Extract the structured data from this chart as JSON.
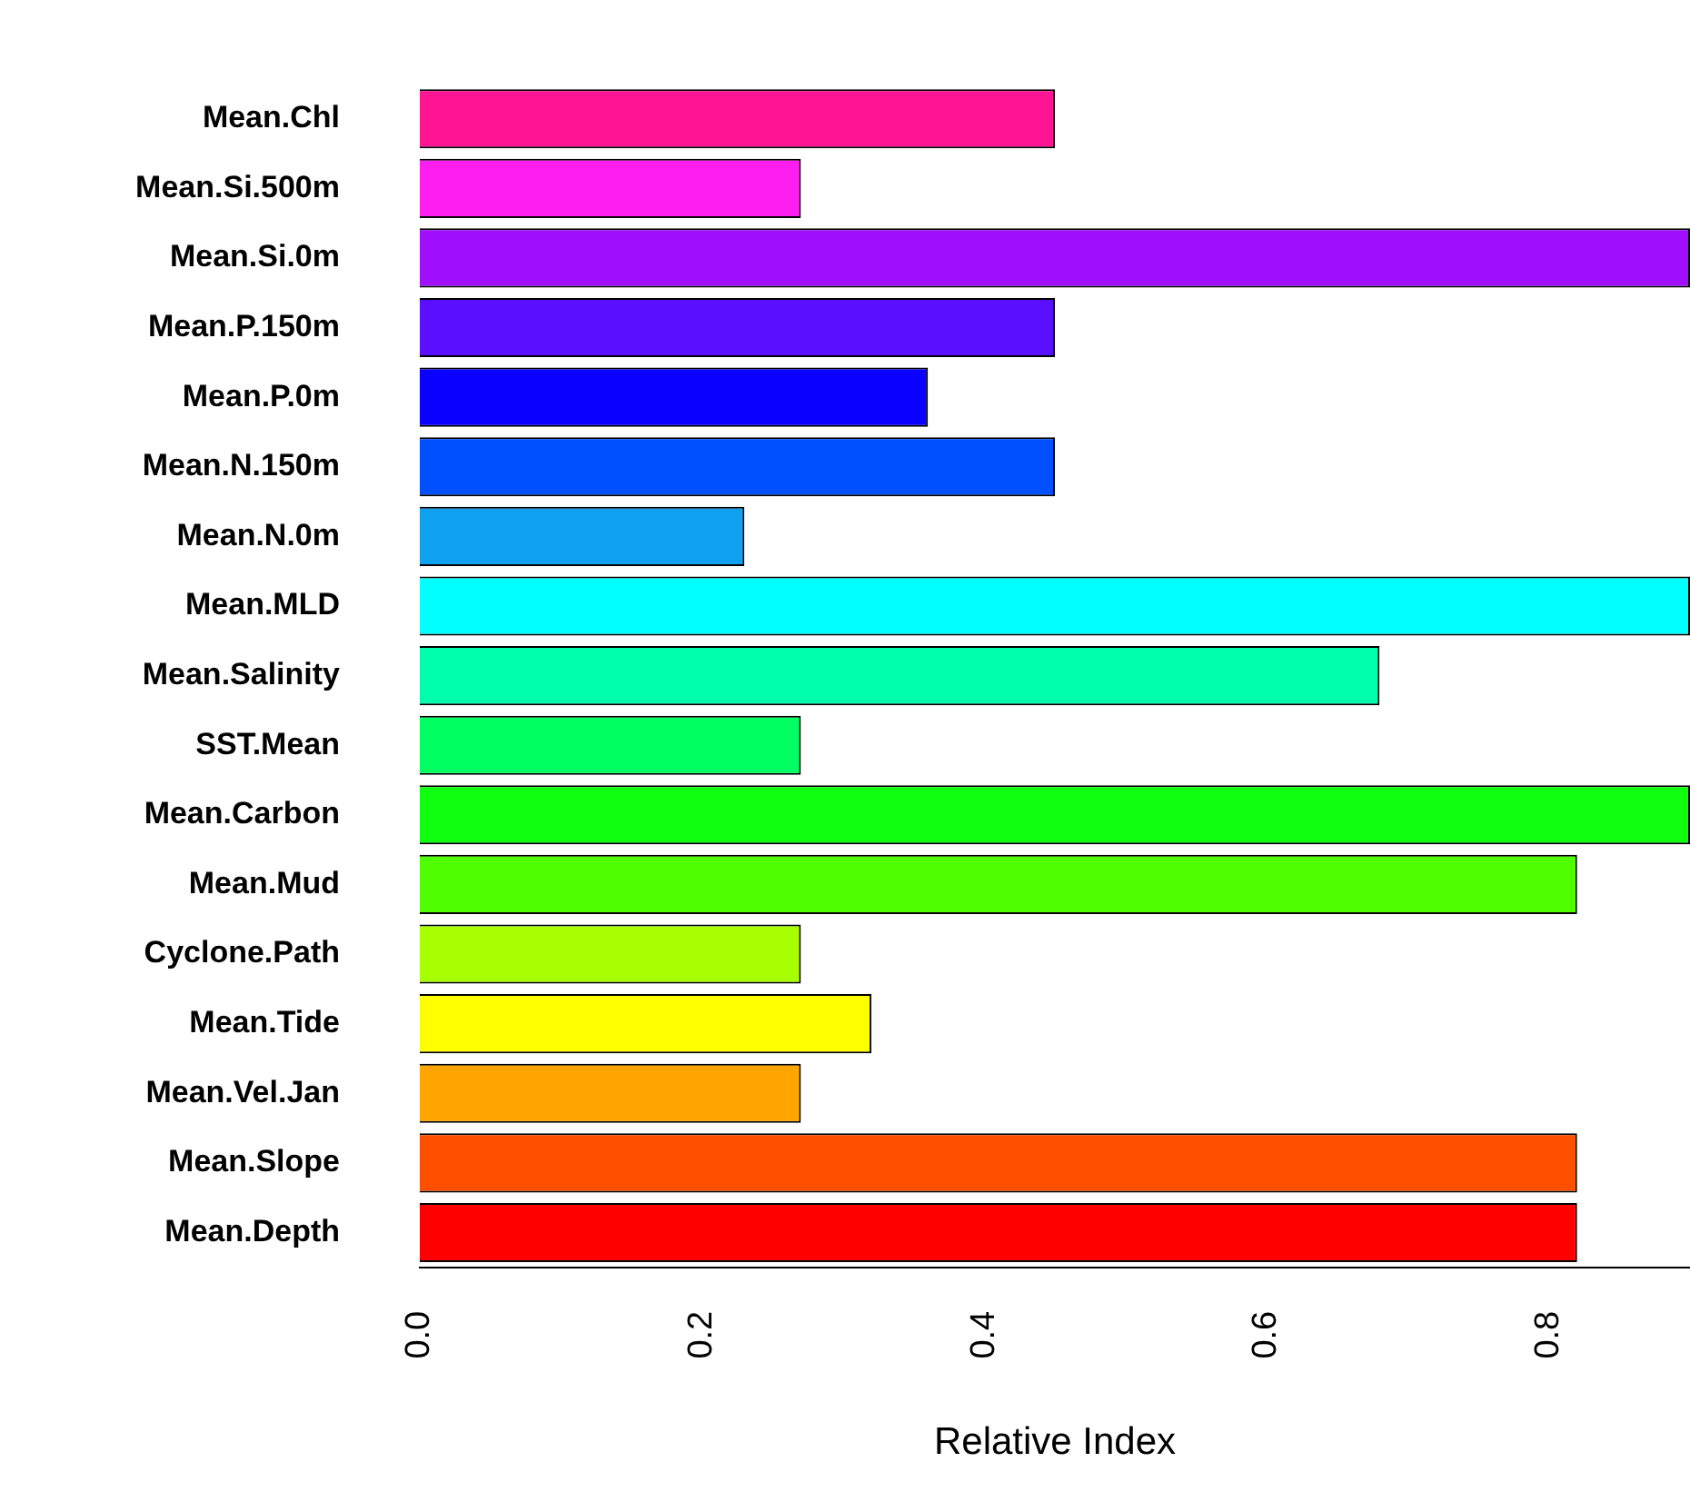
{
  "chart_data": {
    "type": "bar",
    "orientation": "horizontal",
    "xlabel": "Relative Index",
    "categories": [
      "Mean.Chl",
      "Mean.Si.500m",
      "Mean.Si.0m",
      "Mean.P.150m",
      "Mean.P.0m",
      "Mean.N.150m",
      "Mean.N.0m",
      "Mean.MLD",
      "Mean.Salinity",
      "SST.Mean",
      "Mean.Carbon",
      "Mean.Mud",
      "Cyclone.Path",
      "Mean.Tide",
      "Mean.Vel.Jan",
      "Mean.Slope",
      "Mean.Depth"
    ],
    "values": [
      0.45,
      0.27,
      0.9,
      0.45,
      0.36,
      0.45,
      0.23,
      0.9,
      0.68,
      0.27,
      0.9,
      0.82,
      0.27,
      0.32,
      0.27,
      0.82,
      0.82
    ],
    "colors": [
      "#ff1493",
      "#ff1ef0",
      "#a010ff",
      "#5a10ff",
      "#0a00ff",
      "#0050ff",
      "#10a0f0",
      "#00ffff",
      "#00ffaa",
      "#00ff60",
      "#10ff10",
      "#50ff00",
      "#a8ff00",
      "#ffff00",
      "#ffa500",
      "#ff5000",
      "#ff0000"
    ],
    "xlim": [
      0,
      0.9
    ],
    "xticks": [
      {
        "value": 0,
        "label": "0.0"
      },
      0.2,
      0.4,
      0.6,
      0.8
    ]
  }
}
